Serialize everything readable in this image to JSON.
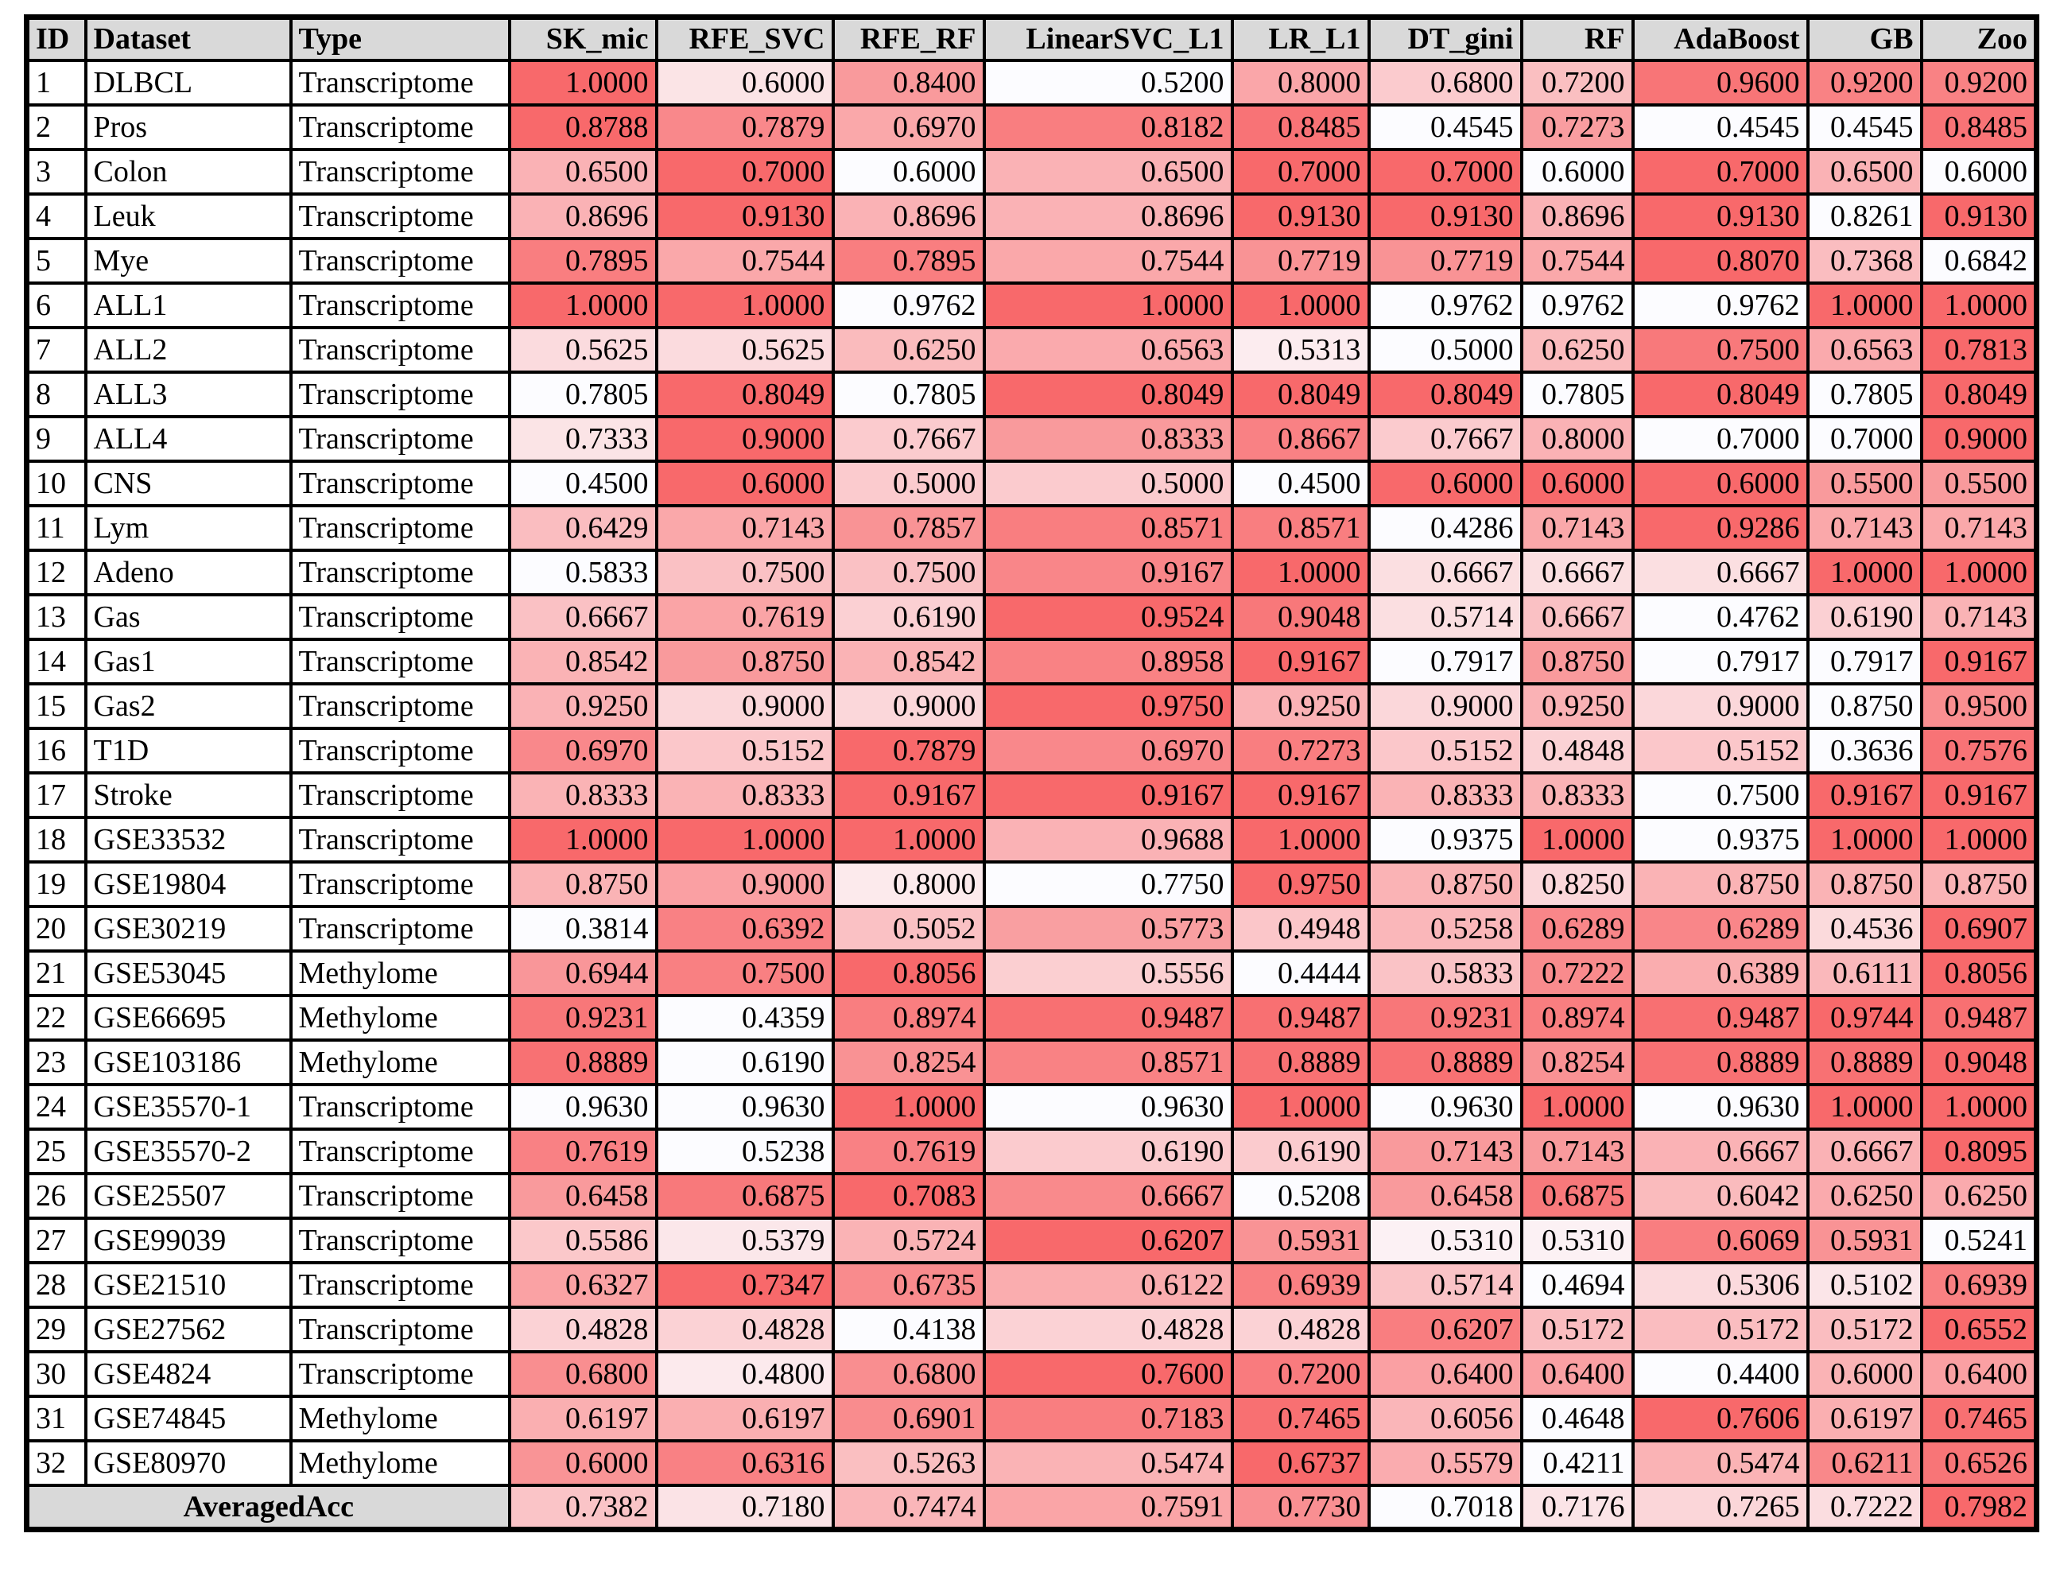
{
  "chart_data": {
    "type": "table",
    "title": "",
    "heatmap": {
      "scope": "per-row",
      "min_color": "#FCFCFF",
      "max_color": "#F8696B",
      "note": "each row's numeric cells shaded white (row min) to red (row max)"
    },
    "columns": [
      "ID",
      "Dataset",
      "Type",
      "SK_mic",
      "RFE_SVC",
      "RFE_RF",
      "LinearSVC_L1",
      "LR_L1",
      "DT_gini",
      "RF",
      "AdaBoost",
      "GB",
      "Zoo"
    ],
    "method_columns": [
      "SK_mic",
      "RFE_SVC",
      "RFE_RF",
      "LinearSVC_L1",
      "LR_L1",
      "DT_gini",
      "RF",
      "AdaBoost",
      "GB",
      "Zoo"
    ],
    "rows": [
      {
        "id": "1",
        "dataset": "DLBCL",
        "type": "Transcriptome",
        "scores": [
          1.0,
          0.6,
          0.84,
          0.52,
          0.8,
          0.68,
          0.72,
          0.96,
          0.92,
          0.92
        ]
      },
      {
        "id": "2",
        "dataset": "Pros",
        "type": "Transcriptome",
        "scores": [
          0.8788,
          0.7879,
          0.697,
          0.8182,
          0.8485,
          0.4545,
          0.7273,
          0.4545,
          0.4545,
          0.8485
        ]
      },
      {
        "id": "3",
        "dataset": "Colon",
        "type": "Transcriptome",
        "scores": [
          0.65,
          0.7,
          0.6,
          0.65,
          0.7,
          0.7,
          0.6,
          0.7,
          0.65,
          0.6
        ]
      },
      {
        "id": "4",
        "dataset": "Leuk",
        "type": "Transcriptome",
        "scores": [
          0.8696,
          0.913,
          0.8696,
          0.8696,
          0.913,
          0.913,
          0.8696,
          0.913,
          0.8261,
          0.913
        ]
      },
      {
        "id": "5",
        "dataset": "Mye",
        "type": "Transcriptome",
        "scores": [
          0.7895,
          0.7544,
          0.7895,
          0.7544,
          0.7719,
          0.7719,
          0.7544,
          0.807,
          0.7368,
          0.6842
        ]
      },
      {
        "id": "6",
        "dataset": "ALL1",
        "type": "Transcriptome",
        "scores": [
          1.0,
          1.0,
          0.9762,
          1.0,
          1.0,
          0.9762,
          0.9762,
          0.9762,
          1.0,
          1.0
        ]
      },
      {
        "id": "7",
        "dataset": "ALL2",
        "type": "Transcriptome",
        "scores": [
          0.5625,
          0.5625,
          0.625,
          0.6563,
          0.5313,
          0.5,
          0.625,
          0.75,
          0.6563,
          0.7813
        ]
      },
      {
        "id": "8",
        "dataset": "ALL3",
        "type": "Transcriptome",
        "scores": [
          0.7805,
          0.8049,
          0.7805,
          0.8049,
          0.8049,
          0.8049,
          0.7805,
          0.8049,
          0.7805,
          0.8049
        ]
      },
      {
        "id": "9",
        "dataset": "ALL4",
        "type": "Transcriptome",
        "scores": [
          0.7333,
          0.9,
          0.7667,
          0.8333,
          0.8667,
          0.7667,
          0.8,
          0.7,
          0.7,
          0.9
        ]
      },
      {
        "id": "10",
        "dataset": "CNS",
        "type": "Transcriptome",
        "scores": [
          0.45,
          0.6,
          0.5,
          0.5,
          0.45,
          0.6,
          0.6,
          0.6,
          0.55,
          0.55
        ]
      },
      {
        "id": "11",
        "dataset": "Lym",
        "type": "Transcriptome",
        "scores": [
          0.6429,
          0.7143,
          0.7857,
          0.8571,
          0.8571,
          0.4286,
          0.7143,
          0.9286,
          0.7143,
          0.7143
        ]
      },
      {
        "id": "12",
        "dataset": "Adeno",
        "type": "Transcriptome",
        "scores": [
          0.5833,
          0.75,
          0.75,
          0.9167,
          1.0,
          0.6667,
          0.6667,
          0.6667,
          1.0,
          1.0
        ]
      },
      {
        "id": "13",
        "dataset": "Gas",
        "type": "Transcriptome",
        "scores": [
          0.6667,
          0.7619,
          0.619,
          0.9524,
          0.9048,
          0.5714,
          0.6667,
          0.4762,
          0.619,
          0.7143
        ]
      },
      {
        "id": "14",
        "dataset": "Gas1",
        "type": "Transcriptome",
        "scores": [
          0.8542,
          0.875,
          0.8542,
          0.8958,
          0.9167,
          0.7917,
          0.875,
          0.7917,
          0.7917,
          0.9167
        ]
      },
      {
        "id": "15",
        "dataset": "Gas2",
        "type": "Transcriptome",
        "scores": [
          0.925,
          0.9,
          0.9,
          0.975,
          0.925,
          0.9,
          0.925,
          0.9,
          0.875,
          0.95
        ]
      },
      {
        "id": "16",
        "dataset": "T1D",
        "type": "Transcriptome",
        "scores": [
          0.697,
          0.5152,
          0.7879,
          0.697,
          0.7273,
          0.5152,
          0.4848,
          0.5152,
          0.3636,
          0.7576
        ]
      },
      {
        "id": "17",
        "dataset": "Stroke",
        "type": "Transcriptome",
        "scores": [
          0.8333,
          0.8333,
          0.9167,
          0.9167,
          0.9167,
          0.8333,
          0.8333,
          0.75,
          0.9167,
          0.9167
        ]
      },
      {
        "id": "18",
        "dataset": "GSE33532",
        "type": "Transcriptome",
        "scores": [
          1.0,
          1.0,
          1.0,
          0.9688,
          1.0,
          0.9375,
          1.0,
          0.9375,
          1.0,
          1.0
        ]
      },
      {
        "id": "19",
        "dataset": "GSE19804",
        "type": "Transcriptome",
        "scores": [
          0.875,
          0.9,
          0.8,
          0.775,
          0.975,
          0.875,
          0.825,
          0.875,
          0.875,
          0.875
        ]
      },
      {
        "id": "20",
        "dataset": "GSE30219",
        "type": "Transcriptome",
        "scores": [
          0.3814,
          0.6392,
          0.5052,
          0.5773,
          0.4948,
          0.5258,
          0.6289,
          0.6289,
          0.4536,
          0.6907
        ]
      },
      {
        "id": "21",
        "dataset": "GSE53045",
        "type": "Methylome",
        "scores": [
          0.6944,
          0.75,
          0.8056,
          0.5556,
          0.4444,
          0.5833,
          0.7222,
          0.6389,
          0.6111,
          0.8056
        ]
      },
      {
        "id": "22",
        "dataset": "GSE66695",
        "type": "Methylome",
        "scores": [
          0.9231,
          0.4359,
          0.8974,
          0.9487,
          0.9487,
          0.9231,
          0.8974,
          0.9487,
          0.9744,
          0.9487
        ]
      },
      {
        "id": "23",
        "dataset": "GSE103186",
        "type": "Methylome",
        "scores": [
          0.8889,
          0.619,
          0.8254,
          0.8571,
          0.8889,
          0.8889,
          0.8254,
          0.8889,
          0.8889,
          0.9048
        ]
      },
      {
        "id": "24",
        "dataset": "GSE35570-1",
        "type": "Transcriptome",
        "scores": [
          0.963,
          0.963,
          1.0,
          0.963,
          1.0,
          0.963,
          1.0,
          0.963,
          1.0,
          1.0
        ]
      },
      {
        "id": "25",
        "dataset": "GSE35570-2",
        "type": "Transcriptome",
        "scores": [
          0.7619,
          0.5238,
          0.7619,
          0.619,
          0.619,
          0.7143,
          0.7143,
          0.6667,
          0.6667,
          0.8095
        ]
      },
      {
        "id": "26",
        "dataset": "GSE25507",
        "type": "Transcriptome",
        "scores": [
          0.6458,
          0.6875,
          0.7083,
          0.6667,
          0.5208,
          0.6458,
          0.6875,
          0.6042,
          0.625,
          0.625
        ]
      },
      {
        "id": "27",
        "dataset": "GSE99039",
        "type": "Transcriptome",
        "scores": [
          0.5586,
          0.5379,
          0.5724,
          0.6207,
          0.5931,
          0.531,
          0.531,
          0.6069,
          0.5931,
          0.5241
        ]
      },
      {
        "id": "28",
        "dataset": "GSE21510",
        "type": "Transcriptome",
        "scores": [
          0.6327,
          0.7347,
          0.6735,
          0.6122,
          0.6939,
          0.5714,
          0.4694,
          0.5306,
          0.5102,
          0.6939
        ]
      },
      {
        "id": "29",
        "dataset": "GSE27562",
        "type": "Transcriptome",
        "scores": [
          0.4828,
          0.4828,
          0.4138,
          0.4828,
          0.4828,
          0.6207,
          0.5172,
          0.5172,
          0.5172,
          0.6552
        ]
      },
      {
        "id": "30",
        "dataset": "GSE4824",
        "type": "Transcriptome",
        "scores": [
          0.68,
          0.48,
          0.68,
          0.76,
          0.72,
          0.64,
          0.64,
          0.44,
          0.6,
          0.64
        ]
      },
      {
        "id": "31",
        "dataset": "GSE74845",
        "type": "Methylome",
        "scores": [
          0.6197,
          0.6197,
          0.6901,
          0.7183,
          0.7465,
          0.6056,
          0.4648,
          0.7606,
          0.6197,
          0.7465
        ]
      },
      {
        "id": "32",
        "dataset": "GSE80970",
        "type": "Methylome",
        "scores": [
          0.6,
          0.6316,
          0.5263,
          0.5474,
          0.6737,
          0.5579,
          0.4211,
          0.5474,
          0.6211,
          0.6526
        ]
      }
    ],
    "footer": {
      "label": "AveragedAcc",
      "scores": [
        0.7382,
        0.718,
        0.7474,
        0.7591,
        0.773,
        0.7018,
        0.7176,
        0.7265,
        0.7222,
        0.7982
      ]
    },
    "value_format": "4 decimal places",
    "colors": {
      "header_bg": "#D9D9D9",
      "border": "#000000",
      "heat_min": "#FCFCFF",
      "heat_max": "#F8696B"
    }
  }
}
